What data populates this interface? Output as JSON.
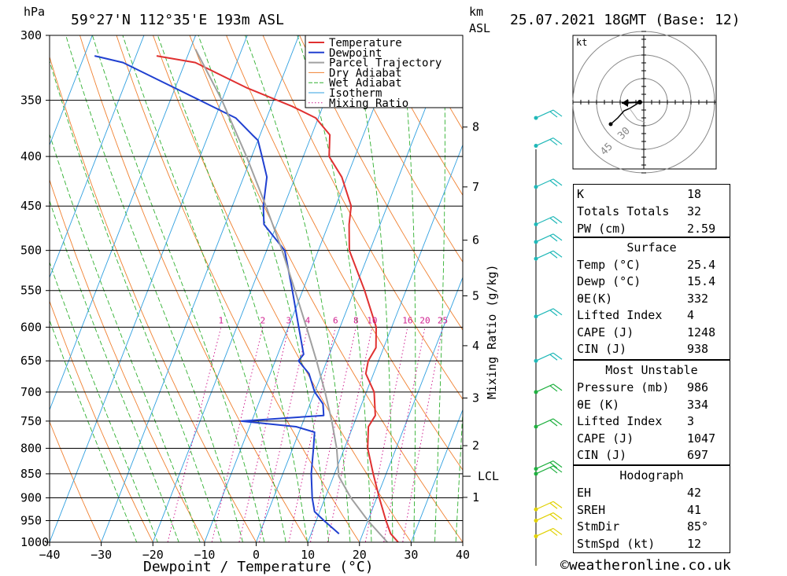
{
  "header": {
    "location": "59°27'N 112°35'E 193m ASL",
    "datetime": "25.07.2021 18GMT (Base: 12)",
    "p_unit": "hPa",
    "km_unit": "km",
    "km_unit2": "ASL"
  },
  "chart_data": {
    "type": "line",
    "title": "59°27'N 112°35'E 193m ASL",
    "xlabel": "Dewpoint / Temperature (°C)",
    "ylabel": "hPa",
    "xlim": [
      -40,
      40
    ],
    "plim": [
      1000,
      300
    ],
    "skew_deg_per_decade_log": 73.2,
    "pressure_ticks": [
      300,
      350,
      400,
      450,
      500,
      550,
      600,
      650,
      700,
      750,
      800,
      850,
      900,
      950,
      1000
    ],
    "temperature_ticks": [
      -40,
      -30,
      -20,
      -10,
      0,
      10,
      20,
      30,
      40
    ],
    "series": [
      {
        "name": "Temperature",
        "color": "#e03030",
        "points": [
          [
            1000,
            27.5
          ],
          [
            980,
            25.4
          ],
          [
            950,
            23.5
          ],
          [
            900,
            20.5
          ],
          [
            850,
            17.5
          ],
          [
            800,
            14.5
          ],
          [
            760,
            13.0
          ],
          [
            740,
            13.5
          ],
          [
            700,
            11.5
          ],
          [
            670,
            8.5
          ],
          [
            650,
            8.0
          ],
          [
            630,
            8.5
          ],
          [
            600,
            7.0
          ],
          [
            550,
            2.0
          ],
          [
            500,
            -4.0
          ],
          [
            470,
            -6.0
          ],
          [
            450,
            -7.0
          ],
          [
            420,
            -11.0
          ],
          [
            400,
            -15.0
          ],
          [
            380,
            -16.5
          ],
          [
            365,
            -20.5
          ],
          [
            355,
            -26.0
          ],
          [
            340,
            -36.0
          ],
          [
            320,
            -48.0
          ],
          [
            315,
            -56.0
          ]
        ]
      },
      {
        "name": "Dewpoint",
        "color": "#2040d0",
        "points": [
          [
            980,
            15.4
          ],
          [
            950,
            11.5
          ],
          [
            930,
            9.0
          ],
          [
            900,
            7.5
          ],
          [
            850,
            5.5
          ],
          [
            800,
            4.0
          ],
          [
            770,
            3.0
          ],
          [
            760,
            -1.0
          ],
          [
            750,
            -12.0
          ],
          [
            740,
            3.5
          ],
          [
            720,
            2.5
          ],
          [
            700,
            0.0
          ],
          [
            670,
            -2.5
          ],
          [
            650,
            -5.5
          ],
          [
            640,
            -5.0
          ],
          [
            600,
            -8.0
          ],
          [
            550,
            -12.0
          ],
          [
            500,
            -16.5
          ],
          [
            470,
            -22.5
          ],
          [
            450,
            -24.0
          ],
          [
            420,
            -25.5
          ],
          [
            400,
            -28.0
          ],
          [
            385,
            -30.0
          ],
          [
            380,
            -31.5
          ],
          [
            365,
            -36.0
          ],
          [
            340,
            -50.0
          ],
          [
            320,
            -62.0
          ],
          [
            315,
            -68.0
          ]
        ]
      },
      {
        "name": "Parcel Trajectory",
        "color": "#a0a0a0",
        "points": [
          [
            1000,
            25.4
          ],
          [
            950,
            20.0
          ],
          [
            900,
            15.0
          ],
          [
            855,
            11.0
          ],
          [
            800,
            8.5
          ],
          [
            750,
            5.5
          ],
          [
            700,
            2.0
          ],
          [
            650,
            -2.0
          ],
          [
            600,
            -6.5
          ],
          [
            550,
            -11.5
          ],
          [
            500,
            -17.0
          ],
          [
            450,
            -23.5
          ],
          [
            400,
            -31.0
          ],
          [
            350,
            -40.0
          ],
          [
            310,
            -49.0
          ]
        ]
      },
      {
        "name": "Dry Adiabat",
        "color": "#f08030"
      },
      {
        "name": "Wet Adiabat",
        "color": "#30b030"
      },
      {
        "name": "Isotherm",
        "color": "#30a0e0"
      },
      {
        "name": "Mixing Ratio",
        "color": "#d02090"
      }
    ],
    "mixing_ratio_labels": [
      "1",
      "2",
      "3",
      "4",
      "6",
      "8",
      "10",
      "16",
      "20",
      "25"
    ],
    "mixing_ratio_values": [
      1,
      2,
      3,
      4,
      6,
      8,
      10,
      16,
      20,
      25
    ],
    "mixing_ratio_axis_label": "Mixing Ratio (g/kg)",
    "km_levels": [
      {
        "label": "1",
        "p": 899
      },
      {
        "label": "2",
        "p": 795
      },
      {
        "label": "3",
        "p": 710
      },
      {
        "label": "4",
        "p": 627
      },
      {
        "label": "5",
        "p": 557
      },
      {
        "label": "6",
        "p": 488
      },
      {
        "label": "7",
        "p": 430
      },
      {
        "label": "8",
        "p": 373
      }
    ],
    "lcl": {
      "label": "LCL",
      "p": 855
    },
    "wind_barbs": [
      {
        "p": 986,
        "color": "#e0d000"
      },
      {
        "p": 950,
        "color": "#e0d000"
      },
      {
        "p": 925,
        "color": "#e0d000"
      },
      {
        "p": 850,
        "color": "#20b040"
      },
      {
        "p": 840,
        "color": "#20b040"
      },
      {
        "p": 760,
        "color": "#20b040"
      },
      {
        "p": 700,
        "color": "#20b040"
      },
      {
        "p": 650,
        "color": "#20b8b8"
      },
      {
        "p": 585,
        "color": "#20b8b8"
      },
      {
        "p": 510,
        "color": "#20b8b8"
      },
      {
        "p": 490,
        "color": "#20b8b8"
      },
      {
        "p": 470,
        "color": "#20b8b8"
      },
      {
        "p": 430,
        "color": "#20b8b8"
      },
      {
        "p": 390,
        "color": "#20b8b8"
      },
      {
        "p": 365,
        "color": "#20b8b8"
      }
    ],
    "hodograph": {
      "unit": "kt",
      "ring_labels": [
        "30",
        "45"
      ]
    }
  },
  "indices": {
    "basic": [
      {
        "label": "K",
        "value": "18"
      },
      {
        "label": "Totals Totals",
        "value": "32"
      },
      {
        "label": "PW (cm)",
        "value": "2.59"
      }
    ],
    "surface_title": "Surface",
    "surface": [
      {
        "label": "Temp (°C)",
        "value": "25.4"
      },
      {
        "label": "Dewp (°C)",
        "value": "15.4"
      },
      {
        "label": "θE(K)",
        "value": "332"
      },
      {
        "label": "Lifted Index",
        "value": "4"
      },
      {
        "label": "CAPE (J)",
        "value": "1248"
      },
      {
        "label": "CIN (J)",
        "value": "938"
      }
    ],
    "mu_title": "Most Unstable",
    "mu": [
      {
        "label": "Pressure (mb)",
        "value": "986"
      },
      {
        "label": "θE (K)",
        "value": "334"
      },
      {
        "label": "Lifted Index",
        "value": "3"
      },
      {
        "label": "CAPE (J)",
        "value": "1047"
      },
      {
        "label": "CIN (J)",
        "value": "697"
      }
    ],
    "hodo_title": "Hodograph",
    "hodo": [
      {
        "label": "EH",
        "value": "42"
      },
      {
        "label": "SREH",
        "value": "41"
      },
      {
        "label": "StmDir",
        "value": "85°"
      },
      {
        "label": "StmSpd (kt)",
        "value": "12"
      }
    ]
  },
  "footer": "©weatheronline.co.uk"
}
